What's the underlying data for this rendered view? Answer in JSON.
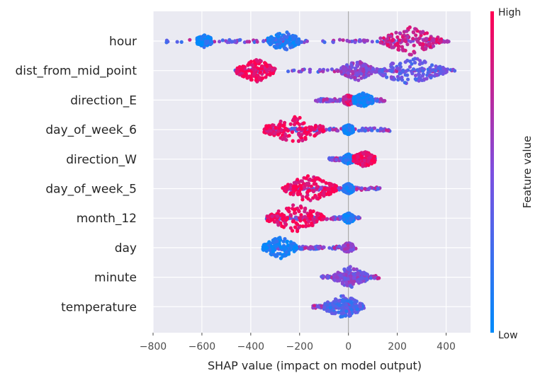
{
  "chart_data": {
    "type": "scatter",
    "subtype": "shap-beeswarm",
    "xlabel": "SHAP value (impact on model output)",
    "xlim": [
      -800,
      500
    ],
    "xticks": [
      -800,
      -600,
      -400,
      -200,
      0,
      200,
      400
    ],
    "tick_labels": [
      "−800",
      "−600",
      "−400",
      "−200",
      "0",
      "200",
      "400"
    ],
    "features": [
      {
        "name": "hour",
        "min": -750,
        "max": 415,
        "dense": [
          [
            -620,
            -560,
            0.1
          ],
          [
            -330,
            -200,
            0.15
          ],
          [
            130,
            380,
            0.8
          ]
        ]
      },
      {
        "name": "dist_from_mid_point",
        "min": -465,
        "max": 455,
        "dense": [
          [
            -30,
            100,
            0.55
          ],
          [
            100,
            400,
            0.4
          ],
          [
            -460,
            -300,
            0.95
          ]
        ]
      },
      {
        "name": "direction_E",
        "min": -135,
        "max": 150,
        "dense": [
          [
            -20,
            20,
            0.85
          ],
          [
            20,
            100,
            0.1
          ]
        ]
      },
      {
        "name": "day_of_week_6",
        "min": -345,
        "max": 170,
        "dense": [
          [
            -20,
            20,
            0.1
          ],
          [
            -345,
            -100,
            0.95
          ]
        ]
      },
      {
        "name": "direction_W",
        "min": -80,
        "max": 110,
        "dense": [
          [
            -20,
            20,
            0.1
          ],
          [
            20,
            110,
            0.95
          ]
        ]
      },
      {
        "name": "day_of_week_5",
        "min": -270,
        "max": 130,
        "dense": [
          [
            -20,
            20,
            0.1
          ],
          [
            -270,
            -50,
            0.95
          ]
        ]
      },
      {
        "name": "month_12",
        "min": -335,
        "max": 50,
        "dense": [
          [
            -20,
            20,
            0.1
          ],
          [
            -335,
            -100,
            0.95
          ]
        ]
      },
      {
        "name": "day",
        "min": -350,
        "max": 30,
        "dense": [
          [
            -20,
            20,
            0.6
          ],
          [
            -350,
            -210,
            0.05
          ]
        ]
      },
      {
        "name": "minute",
        "min": -110,
        "max": 125,
        "dense": [
          [
            -20,
            20,
            0.6
          ],
          [
            -60,
            80,
            0.5
          ]
        ]
      },
      {
        "name": "temperature",
        "min": -145,
        "max": 65,
        "dense": [
          [
            -20,
            20,
            0.6
          ],
          [
            -100,
            60,
            0.3
          ]
        ]
      }
    ],
    "colorbar": {
      "title": "Feature value",
      "high_label": "High",
      "low_label": "Low",
      "low_color": "#008bfb",
      "mid_color": "#7d4fe0",
      "high_color": "#ff0052"
    },
    "background_color": "#eaeaf2",
    "grid": true
  }
}
